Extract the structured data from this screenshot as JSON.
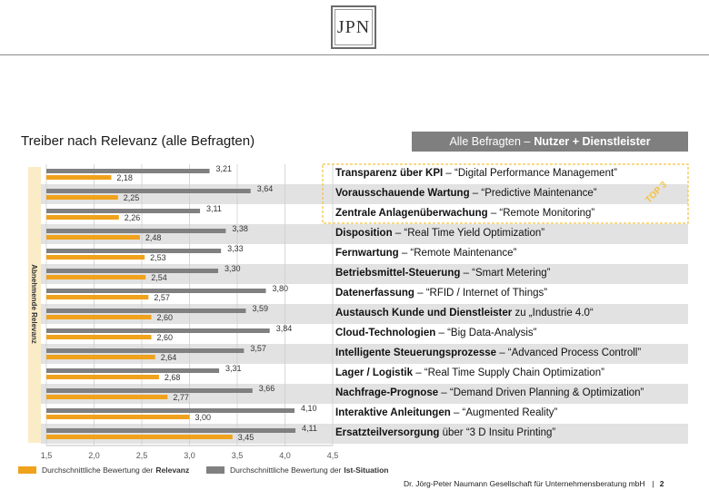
{
  "logo": {
    "text": "JPN"
  },
  "title": "Treiber nach Relevanz (alle Befragten)",
  "banner": {
    "prefix": "Alle Befragten –",
    "bold": "Nutzer + Dienstleister"
  },
  "axis": {
    "vertical_label": "Abnehmende Relevanz"
  },
  "top_badge": "TOP 3",
  "colors": {
    "relevance": "#f0a21c",
    "ist": "#808080",
    "stripe": "#e2e2e2",
    "side": "#fbecc8",
    "badge": "#f5c241"
  },
  "labels": [
    {
      "bold": "Transparenz über KPI",
      "rest": " – “Digital Performance Management”"
    },
    {
      "bold": "Vorausschauende Wartung",
      "rest": " – “Predictive Maintenance”"
    },
    {
      "bold": "Zentrale Anlagenüberwachung",
      "rest": " – “Remote Monitoring”"
    },
    {
      "bold": "Disposition",
      "rest": " – “Real Time Yield Optimization”"
    },
    {
      "bold": "Fernwartung",
      "rest": " – “Remote Maintenance”"
    },
    {
      "bold": "Betriebsmittel-Steuerung",
      "rest": " – “Smart Metering”"
    },
    {
      "bold": "Datenerfassung",
      "rest": " – “RFID / Internet of Things”"
    },
    {
      "bold": "Austausch Kunde und Dienstleister",
      "rest": " zu „Industrie 4.0“"
    },
    {
      "bold": "Cloud-Technologien",
      "rest": " – “Big Data-Analysis”"
    },
    {
      "bold": "Intelligente Steuerungsprozesse",
      "rest": " – “Advanced Process Controll”"
    },
    {
      "bold": "Lager / Logistik",
      "rest": " – “Real Time Supply Chain Optimization”"
    },
    {
      "bold": "Nachfrage-Prognose",
      "rest": " – “Demand Driven Planning & Optimization”"
    },
    {
      "bold": "Interaktive Anleitungen",
      "rest": " – “Augmented Reality”"
    },
    {
      "bold": "Ersatzteilversorgung",
      "rest": " über “3 D Insitu Printing”"
    }
  ],
  "chart_data": {
    "type": "bar",
    "orientation": "horizontal",
    "xlim": [
      1.5,
      4.5
    ],
    "xticks": [
      "1,5",
      "2,0",
      "2,5",
      "3,0",
      "3,5",
      "4,0",
      "4,5"
    ],
    "series": [
      {
        "name": "Durchschnittliche Bewertung der Ist-Situation",
        "values": [
          3.21,
          3.64,
          3.11,
          3.38,
          3.33,
          3.3,
          3.8,
          3.59,
          3.84,
          3.57,
          3.31,
          3.66,
          4.1,
          4.11
        ]
      },
      {
        "name": "Durchschnittliche Bewertung der Relevanz",
        "values": [
          2.18,
          2.25,
          2.26,
          2.48,
          2.53,
          2.54,
          2.57,
          2.6,
          2.6,
          2.64,
          2.68,
          2.77,
          3.0,
          3.45
        ]
      }
    ],
    "grid": true
  },
  "legend": {
    "relevance": {
      "prefix": "Durchschnittliche Bewertung der",
      "bold": "Relevanz"
    },
    "ist": {
      "prefix": "Durchschnittliche Bewertung der",
      "bold": "Ist-Situation"
    }
  },
  "footer": {
    "company": "Dr. Jörg-Peter Naumann Gesellschaft für Unternehmensberatung mbH",
    "separator": "|",
    "page": "2"
  }
}
